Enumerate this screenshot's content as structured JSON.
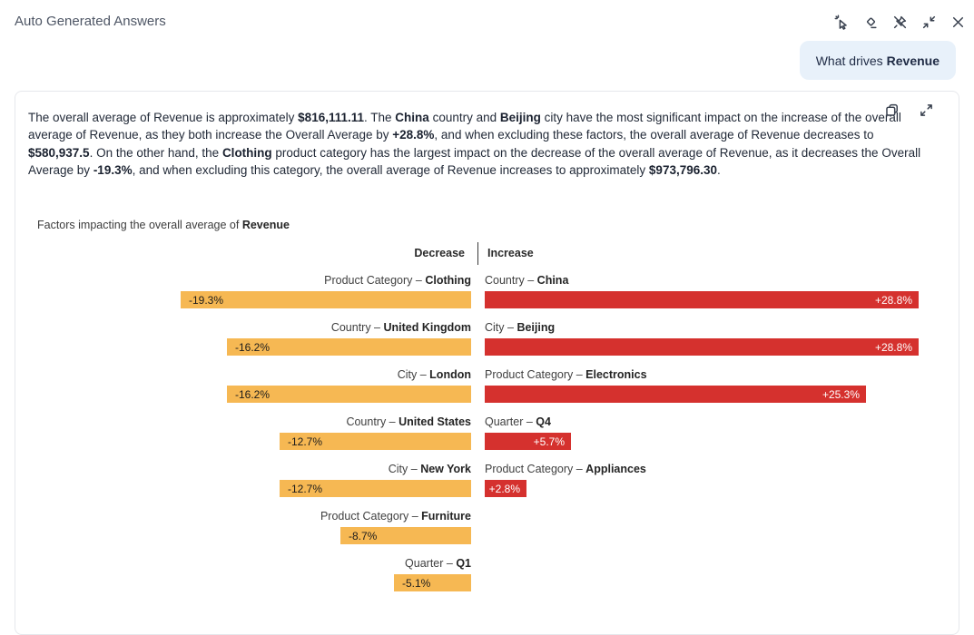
{
  "header": {
    "title": "Auto Generated Answers"
  },
  "question_bubble": {
    "prefix": "What drives ",
    "metric": "Revenue"
  },
  "answer": {
    "segments": [
      {
        "t": "The overall average of Revenue is approximately ",
        "b": false
      },
      {
        "t": "$816,111.11",
        "b": true
      },
      {
        "t": ". The ",
        "b": false
      },
      {
        "t": "China",
        "b": true
      },
      {
        "t": " country and ",
        "b": false
      },
      {
        "t": "Beijing",
        "b": true
      },
      {
        "t": " city have the most significant impact on the increase of the overall average of Revenue, as they both increase the Overall Average by ",
        "b": false
      },
      {
        "t": "+28.8%",
        "b": true
      },
      {
        "t": ", and when excluding these factors, the overall average of Revenue decreases to ",
        "b": false
      },
      {
        "t": "$580,937.5",
        "b": true
      },
      {
        "t": ". On the other hand, the ",
        "b": false
      },
      {
        "t": "Clothing",
        "b": true
      },
      {
        "t": " product category has the largest impact on the decrease of the overall average of Revenue, as it decreases the Overall Average by ",
        "b": false
      },
      {
        "t": "-19.3%",
        "b": true
      },
      {
        "t": ", and when excluding this category, the overall average of Revenue increases to approximately ",
        "b": false
      },
      {
        "t": "$973,796.30",
        "b": true
      },
      {
        "t": ".",
        "b": false
      }
    ]
  },
  "chart_data": {
    "type": "bar",
    "title_prefix": "Factors impacting the overall average of ",
    "title_metric": "Revenue",
    "decrease_header": "Decrease",
    "increase_header": "Increase",
    "scale_max_percent": 28.8,
    "decrease": [
      {
        "category": "Product Category – ",
        "name": "Clothing",
        "value": -19.3,
        "label": "-19.3%"
      },
      {
        "category": "Country – ",
        "name": "United Kingdom",
        "value": -16.2,
        "label": "-16.2%"
      },
      {
        "category": "City – ",
        "name": "London",
        "value": -16.2,
        "label": "-16.2%"
      },
      {
        "category": "Country – ",
        "name": "United States",
        "value": -12.7,
        "label": "-12.7%"
      },
      {
        "category": "City – ",
        "name": "New York",
        "value": -12.7,
        "label": "-12.7%"
      },
      {
        "category": "Product Category – ",
        "name": "Furniture",
        "value": -8.7,
        "label": "-8.7%"
      },
      {
        "category": "Quarter – ",
        "name": "Q1",
        "value": -5.1,
        "label": "-5.1%"
      }
    ],
    "increase": [
      {
        "category": "Country – ",
        "name": "China",
        "value": 28.8,
        "label": "+28.8%"
      },
      {
        "category": "City – ",
        "name": "Beijing",
        "value": 28.8,
        "label": "+28.8%"
      },
      {
        "category": "Product Category – ",
        "name": "Electronics",
        "value": 25.3,
        "label": "+25.3%"
      },
      {
        "category": "Quarter – ",
        "name": "Q4",
        "value": 5.7,
        "label": "+5.7%"
      },
      {
        "category": "Product Category – ",
        "name": "Appliances",
        "value": 2.8,
        "label": "+2.8%"
      }
    ],
    "bar_colors": {
      "decrease": "#F6B853",
      "increase": "#D5312E"
    }
  }
}
